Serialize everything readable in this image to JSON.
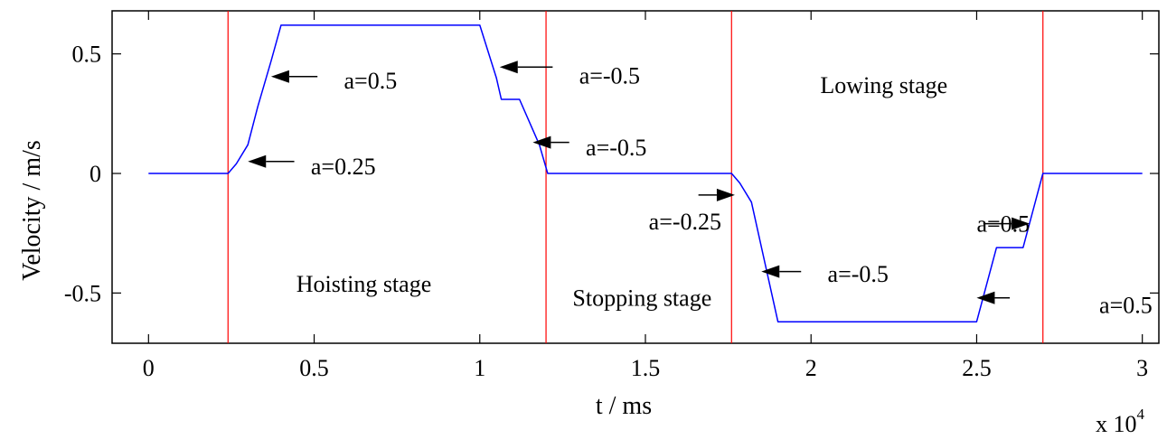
{
  "chart_data": {
    "type": "line",
    "xlabel": "t / ms",
    "ylabel": "Velocity  / m/s",
    "x_multiplier_base": "x 10",
    "x_multiplier_exp": "4",
    "xlim": [
      -0.11,
      3.05
    ],
    "ylim": [
      -0.71,
      0.68
    ],
    "xticks": [
      0,
      0.5,
      1,
      1.5,
      2,
      2.5,
      3
    ],
    "xtick_labels": [
      "0",
      "0.5",
      "1",
      "1.5",
      "2",
      "2.5",
      "3"
    ],
    "yticks": [
      0.5,
      0,
      -0.5
    ],
    "ytick_labels": [
      "0.5",
      "0",
      "-0.5"
    ],
    "grid": false,
    "colors": {
      "curve": "#0000ff",
      "stage_lines": "#ff0000",
      "arrows": "#000000"
    },
    "series": [
      {
        "x": [
          0,
          0.24,
          0.265,
          0.3,
          0.33,
          0.37,
          0.4,
          1.0,
          1.05,
          1.065,
          1.12,
          1.18,
          1.205,
          1.76,
          1.785,
          1.82,
          1.9,
          2.5,
          2.56,
          2.64,
          2.7,
          3.0
        ],
        "y": [
          0,
          0,
          0.04,
          0.12,
          0.28,
          0.47,
          0.62,
          0.62,
          0.4,
          0.31,
          0.31,
          0.12,
          0,
          0,
          -0.04,
          -0.12,
          -0.62,
          -0.62,
          -0.31,
          -0.31,
          0,
          0
        ]
      }
    ],
    "stage_boundaries": [
      0.24,
      1.2,
      1.76,
      2.7
    ],
    "stage_labels": [
      {
        "text": "Hoisting stage",
        "x": 0.65,
        "y": -0.46
      },
      {
        "text": "Stopping stage",
        "x": 1.49,
        "y": -0.52
      },
      {
        "text": "Lowing stage",
        "x": 2.22,
        "y": 0.37
      }
    ],
    "annotations": [
      {
        "text": "a=0.5",
        "text_x": 0.59,
        "text_y": 0.39,
        "arrow_from": [
          0.51,
          0.405
        ],
        "arrow_to": [
          0.37,
          0.405
        ]
      },
      {
        "text": "a=0.25",
        "text_x": 0.49,
        "text_y": 0.03,
        "arrow_from": [
          0.44,
          0.05
        ],
        "arrow_to": [
          0.3,
          0.05
        ]
      },
      {
        "text": "a=-0.5",
        "text_x": 1.3,
        "text_y": 0.41,
        "arrow_from": [
          1.22,
          0.445
        ],
        "arrow_to": [
          1.06,
          0.445
        ]
      },
      {
        "text": "a=-0.5",
        "text_x": 1.32,
        "text_y": 0.11,
        "arrow_from": [
          1.27,
          0.13
        ],
        "arrow_to": [
          1.16,
          0.13
        ]
      },
      {
        "text": "a=-0.25",
        "text_x": 1.51,
        "text_y": -0.2,
        "arrow_from": [
          1.66,
          -0.09
        ],
        "arrow_to": [
          1.77,
          -0.09
        ]
      },
      {
        "text": "a=-0.5",
        "text_x": 2.05,
        "text_y": -0.42,
        "arrow_from": [
          1.97,
          -0.41
        ],
        "arrow_to": [
          1.85,
          -0.41
        ]
      },
      {
        "text": "a=0.5",
        "text_x": 2.5,
        "text_y": -0.21,
        "arrow_from": [
          2.52,
          -0.21
        ],
        "arrow_to": [
          2.66,
          -0.21
        ]
      },
      {
        "text": "a=0.5",
        "text_x": 2.87,
        "text_y": -0.55,
        "arrow_from": [
          2.6,
          -0.52
        ],
        "arrow_to": [
          2.5,
          -0.52
        ]
      }
    ]
  }
}
